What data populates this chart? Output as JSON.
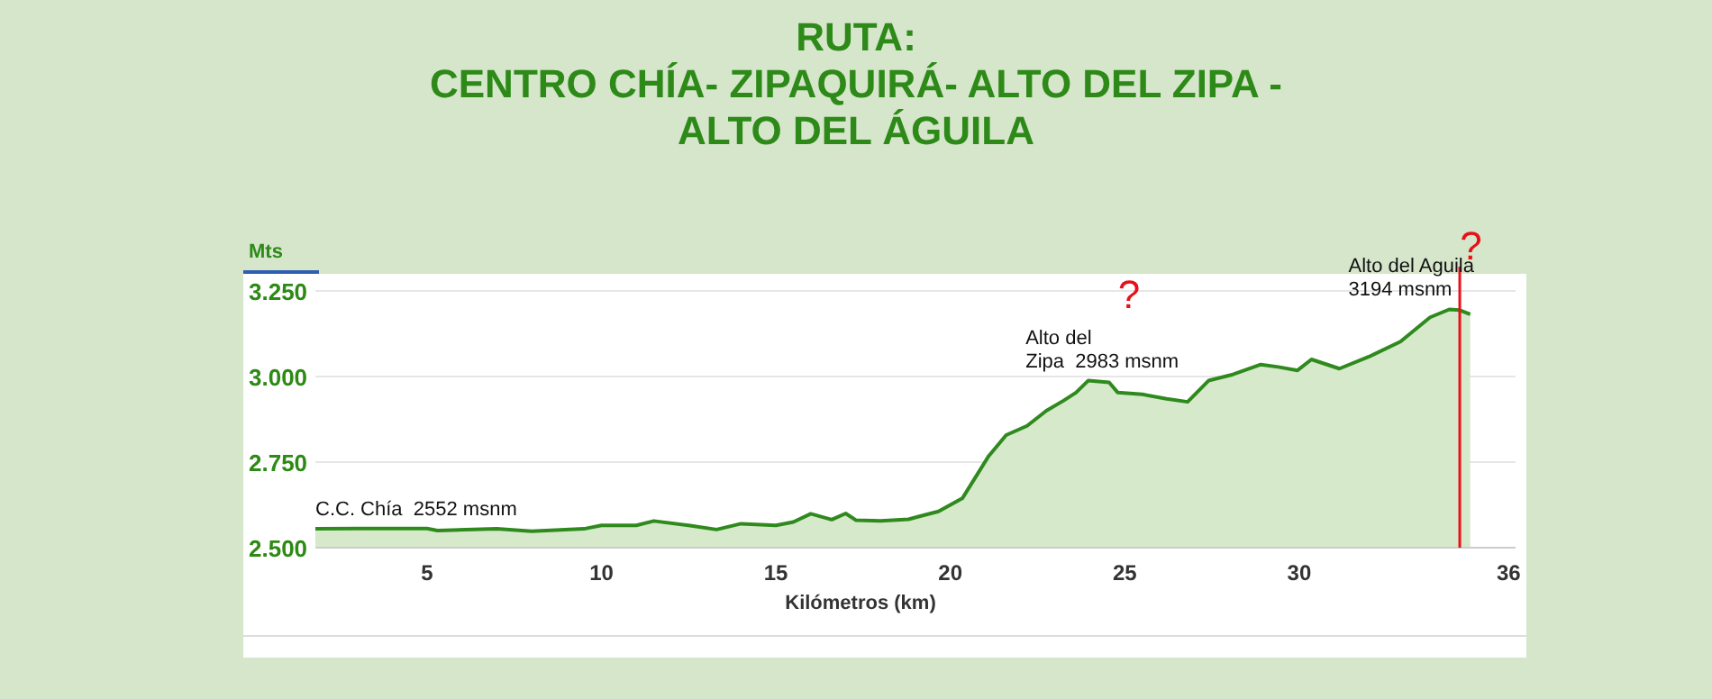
{
  "chart_data": {
    "type": "area",
    "title": "RUTA:\nCENTRO CHÍA- ZIPAQUIRÁ- ALTO DEL ZIPA -\nALTO DEL ÁGUILA",
    "xlabel": "Kilómetros (km)",
    "ylabel": "Mts",
    "x": [
      1.8,
      3,
      5,
      5.3,
      7,
      8,
      9.5,
      10,
      11,
      11.5,
      12.5,
      13.3,
      14,
      15,
      15.5,
      16,
      16.6,
      17,
      17.3,
      18,
      18.8,
      19.66,
      20.35,
      21.1,
      21.6,
      22.2,
      22.75,
      23.25,
      23.6,
      23.95,
      24.55,
      24.8,
      25.5,
      26.2,
      26.8,
      27.4,
      28.1,
      28.9,
      29.4,
      29.95,
      30.35,
      31.15,
      32,
      32.9,
      33.75,
      34.3,
      34.6,
      34.9
    ],
    "series": [
      {
        "color": "#2f8a1e",
        "values": [
          2555,
          2556,
          2556,
          2550,
          2555,
          2548,
          2555,
          2565,
          2565,
          2578,
          2565,
          2553,
          2570,
          2565,
          2575,
          2599,
          2582,
          2600,
          2580,
          2578,
          2583,
          2606,
          2645,
          2768,
          2829,
          2856,
          2900,
          2930,
          2953,
          2988,
          2983,
          2953,
          2948,
          2935,
          2926,
          2988,
          3006,
          3035,
          3028,
          3018,
          3050,
          3023,
          3058,
          3102,
          3173,
          3196,
          3194,
          3182
        ]
      }
    ],
    "xlim": [
      1.8,
      36.2
    ],
    "ylim": [
      2500,
      3300
    ],
    "xticks": [
      5,
      10,
      15,
      20,
      25,
      30,
      36
    ],
    "yticks": [
      {
        "value": 2500,
        "label": "2.500"
      },
      {
        "value": 2750,
        "label": "2.750"
      },
      {
        "value": 3000,
        "label": "3.000"
      },
      {
        "value": 3250,
        "label": "3.250"
      }
    ],
    "grid": "y",
    "ref_lines": [
      {
        "axis": "x",
        "value": 34.6,
        "color": "#e8101a"
      }
    ],
    "annotations": [
      {
        "text": "C.C. Chía  2552 msnm",
        "x": 1.8,
        "y": 2552
      },
      {
        "text": "Alto del\nZipa  2983 msnm",
        "x": 24.5,
        "y": 2983
      },
      "?",
      {
        "text": "Alto del Aguila\n3194 msnm",
        "x": 34.3,
        "y": 3194
      },
      "?"
    ]
  }
}
